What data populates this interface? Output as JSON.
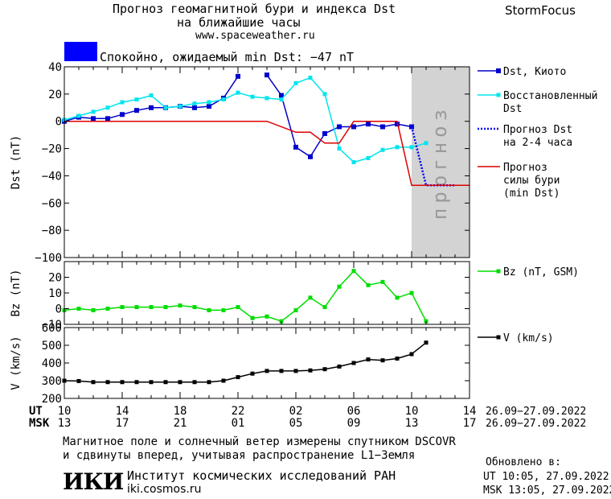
{
  "header": {
    "title_line1": "Прогноз геомагнитной бури и индекса Dst",
    "title_line2": "на ближайшие часы",
    "website": "www.spaceweather.ru",
    "brand": "StormFocus"
  },
  "status": {
    "text": "Спокойно, ожидаемый min Dst: −47 nT",
    "color": "#0000ff"
  },
  "colors": {
    "dst_kyoto": "#0000cc",
    "dst_restored": "#00e5ee",
    "dst_forecast": "#0000ff",
    "storm_forecast": "#dd0000",
    "bz": "#00dd00",
    "v": "#000000",
    "forecast_zone": "#d3d3d3"
  },
  "chart_data": [
    {
      "type": "line",
      "ylabel": "Dst (nT)",
      "ylim": [
        -100,
        40
      ],
      "yticks": [
        40,
        20,
        0,
        -20,
        -40,
        -60,
        -80,
        -100
      ],
      "xlim": [
        0,
        28
      ],
      "forecast_zone_x": [
        24,
        28
      ],
      "forecast_zone_label": "прогноз",
      "legend_position": "right",
      "series": [
        {
          "name": "Dst, Киото",
          "x": [
            0,
            1,
            2,
            3,
            4,
            5,
            6,
            7,
            8,
            9,
            10,
            11,
            12,
            13,
            14,
            15,
            16,
            17,
            18,
            19,
            20,
            21,
            22,
            23,
            24
          ],
          "values": [
            0,
            3,
            2,
            2,
            5,
            8,
            10,
            10,
            11,
            10,
            11,
            17,
            33,
            null,
            34,
            19,
            -19,
            -26,
            -9,
            -4,
            -4,
            -2,
            -4,
            -2,
            -4
          ]
        },
        {
          "name": "Восстановленный Dst",
          "x": [
            0,
            1,
            2,
            3,
            4,
            5,
            6,
            7,
            8,
            9,
            10,
            11,
            12,
            13,
            14,
            15,
            16,
            17,
            18,
            19,
            20,
            21,
            22,
            23,
            24,
            25
          ],
          "values": [
            1,
            4,
            7,
            10,
            14,
            16,
            19,
            10,
            11,
            13,
            14,
            16,
            21,
            18,
            17,
            16,
            28,
            32,
            20,
            -20,
            -30,
            -27,
            -21,
            -19,
            -19,
            -16
          ]
        },
        {
          "name": "Прогноз Dst на 2-4 часа",
          "x": [
            24,
            25,
            26,
            27
          ],
          "values": [
            -4,
            -47,
            -47,
            -47
          ]
        },
        {
          "name": "Прогноз силы бури (min Dst)",
          "x": [
            0,
            14,
            16,
            17,
            18,
            19,
            20,
            21,
            22,
            23,
            24,
            25,
            26,
            27,
            28
          ],
          "values": [
            0,
            0,
            -8,
            -8,
            -16,
            -16,
            0,
            0,
            0,
            0,
            -47,
            -47,
            -47,
            -47,
            -47
          ]
        }
      ]
    },
    {
      "type": "line",
      "ylabel": "Bz (nT)",
      "ylim": [
        -10,
        30
      ],
      "yticks": [
        20,
        10,
        0,
        -10
      ],
      "xlim": [
        0,
        28
      ],
      "series": [
        {
          "name": "Bz (nT, GSM)",
          "x": [
            0,
            1,
            2,
            3,
            4,
            5,
            6,
            7,
            8,
            9,
            10,
            11,
            12,
            13,
            14,
            15,
            16,
            17,
            18,
            19,
            20,
            21,
            22,
            23,
            24,
            25
          ],
          "values": [
            -1,
            0,
            -1,
            0,
            1,
            1,
            1,
            1,
            2,
            1,
            -1,
            -1,
            1,
            -6,
            -5,
            -8,
            -1,
            7,
            1,
            14,
            24,
            15,
            17,
            7,
            10,
            -8
          ]
        }
      ]
    },
    {
      "type": "line",
      "ylabel": "V (km/s)",
      "ylim": [
        200,
        600
      ],
      "yticks": [
        600,
        500,
        400,
        300,
        200
      ],
      "xlim": [
        0,
        28
      ],
      "series": [
        {
          "name": "V (km/s)",
          "x": [
            0,
            1,
            2,
            3,
            4,
            5,
            6,
            7,
            8,
            9,
            10,
            11,
            12,
            13,
            14,
            15,
            16,
            17,
            18,
            19,
            20,
            21,
            22,
            23,
            24,
            25
          ],
          "values": [
            300,
            298,
            292,
            292,
            292,
            292,
            292,
            292,
            292,
            292,
            292,
            300,
            320,
            340,
            355,
            355,
            355,
            358,
            365,
            380,
            400,
            420,
            415,
            425,
            450,
            515
          ]
        }
      ]
    }
  ],
  "xaxis": {
    "ut_label": "UT",
    "msk_label": "MSK",
    "tick_positions": [
      0,
      4,
      8,
      12,
      16,
      20,
      24,
      28
    ],
    "ut_ticks": [
      "10",
      "14",
      "18",
      "22",
      "02",
      "06",
      "10",
      "14"
    ],
    "msk_ticks": [
      "13",
      "17",
      "21",
      "01",
      "05",
      "09",
      "13",
      "17"
    ],
    "date_range_ut": "26.09−27.09.2022",
    "date_range_msk": "26.09−27.09.2022"
  },
  "footer": {
    "note_line1": "Магнитное поле и солнечный ветер измерены спутником DSCOVR",
    "note_line2": "и сдвинуты вперед, учитывая распространение L1−Земля",
    "logo": "ИКИ",
    "institute": "Институт космических исследований РАН",
    "institute_site": "iki.cosmos.ru",
    "updated_label": "Обновлено в:",
    "updated_ut": "UT   10:05, 27.09.2022",
    "updated_msk": "MSK 13:05, 27.09.2022"
  }
}
